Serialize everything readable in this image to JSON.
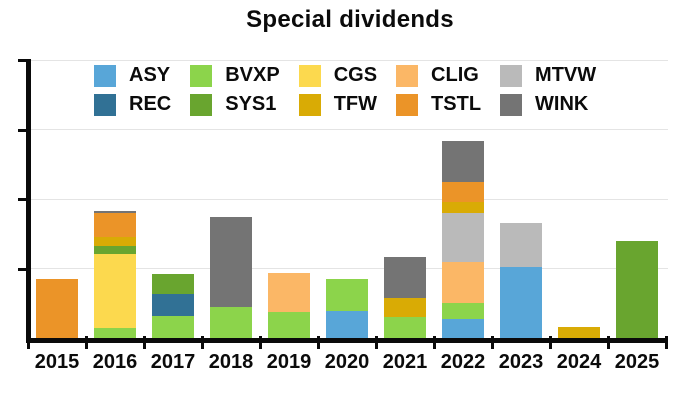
{
  "title": "Special dividends",
  "colors": {
    "background": "#ffffff",
    "axis": "#0a0a0a",
    "grid": "#e4e4e4",
    "text": "#0b0b0b"
  },
  "chart_data": {
    "type": "bar",
    "stacked": true,
    "title": "Special dividends",
    "xlabel": "",
    "ylabel": "",
    "categories": [
      "2015",
      "2016",
      "2017",
      "2018",
      "2019",
      "2020",
      "2021",
      "2022",
      "2023",
      "2024",
      "2025"
    ],
    "series": [
      {
        "name": "ASY",
        "color": "#58a6d8",
        "values": [
          0,
          0,
          0,
          0,
          0,
          0.39,
          0,
          0.28,
          1.02,
          0,
          0
        ]
      },
      {
        "name": "BVXP",
        "color": "#8cd44b",
        "values": [
          0,
          0.15,
          0.31,
          0.44,
          0.37,
          0.46,
          0.3,
          0.22,
          0,
          0,
          0
        ]
      },
      {
        "name": "CGS",
        "color": "#fcd94e",
        "values": [
          0,
          1.06,
          0,
          0,
          0,
          0,
          0,
          0,
          0,
          0,
          0
        ]
      },
      {
        "name": "CLIG",
        "color": "#fbb766",
        "values": [
          0,
          0,
          0,
          0,
          0.57,
          0,
          0,
          0.6,
          0,
          0,
          0
        ]
      },
      {
        "name": "MTVW",
        "color": "#bababa",
        "values": [
          0,
          0,
          0,
          0,
          0,
          0,
          0,
          0.7,
          0.64,
          0,
          0
        ]
      },
      {
        "name": "REC",
        "color": "#317195",
        "values": [
          0,
          0,
          0.32,
          0,
          0,
          0,
          0,
          0,
          0,
          0,
          0
        ]
      },
      {
        "name": "SYS1",
        "color": "#69a52f",
        "values": [
          0,
          0.11,
          0.29,
          0,
          0,
          0,
          0,
          0,
          0,
          0,
          1.39
        ]
      },
      {
        "name": "TFW",
        "color": "#d9ab05",
        "values": [
          0,
          0.13,
          0,
          0,
          0,
          0,
          0.27,
          0.15,
          0,
          0.16,
          0
        ]
      },
      {
        "name": "TSTL",
        "color": "#eb9428",
        "values": [
          0.85,
          0.35,
          0,
          0,
          0,
          0,
          0,
          0.29,
          0,
          0,
          0
        ]
      },
      {
        "name": "WINK",
        "color": "#747474",
        "values": [
          0,
          0.03,
          0,
          1.3,
          0,
          0,
          0.59,
          0.6,
          0,
          0,
          0
        ]
      }
    ],
    "ylim": [
      0,
      4
    ],
    "y_ticks": [
      1,
      2,
      3,
      4
    ],
    "y_tick_labels_visible": false,
    "grid": true,
    "legend_position": "top-inside",
    "legend_columns": 5
  }
}
